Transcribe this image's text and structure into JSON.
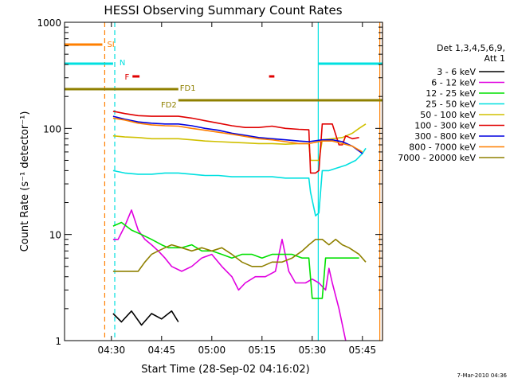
{
  "chart_data": {
    "type": "line",
    "title": "HESSI Observing Summary Count Rates",
    "xlabel": "Start Time (28-Sep-02 04:16:02)",
    "ylabel": "Count Rate (s⁻¹ detector⁻¹)",
    "yscale": "log",
    "ylim": [
      1,
      1000
    ],
    "xlim_minutes_after_04_16_02": [
      0,
      95
    ],
    "x_ticks": [
      {
        "label": "04:30",
        "t": 14
      },
      {
        "label": "04:45",
        "t": 29
      },
      {
        "label": "05:00",
        "t": 44
      },
      {
        "label": "05:15",
        "t": 59
      },
      {
        "label": "05:30",
        "t": 74
      },
      {
        "label": "05:45",
        "t": 89
      }
    ],
    "y_ticks": [
      {
        "label": "1",
        "v": 1
      },
      {
        "label": "10",
        "v": 10
      },
      {
        "label": "100",
        "v": 100
      },
      {
        "label": "1000",
        "v": 1000
      }
    ],
    "legend_title": [
      "Det 1,3,4,5,6,9,",
      "Att 1"
    ],
    "legend_placement": "right",
    "series": [
      {
        "name": "3 - 6 keV",
        "color": "#000000",
        "points": [
          [
            14.5,
            1.8
          ],
          [
            17,
            1.5
          ],
          [
            20,
            1.9
          ],
          [
            23,
            1.4
          ],
          [
            26,
            1.8
          ],
          [
            29,
            1.6
          ],
          [
            32,
            1.9
          ],
          [
            34,
            1.5
          ]
        ]
      },
      {
        "name": "6 - 12 keV",
        "color": "#e000e0",
        "points": [
          [
            14.5,
            9
          ],
          [
            16,
            9
          ],
          [
            18,
            12
          ],
          [
            20,
            17
          ],
          [
            22,
            11
          ],
          [
            24,
            9
          ],
          [
            26,
            8
          ],
          [
            28,
            7
          ],
          [
            30,
            6
          ],
          [
            32,
            5
          ],
          [
            35,
            4.5
          ],
          [
            38,
            5
          ],
          [
            41,
            6
          ],
          [
            44,
            6.5
          ],
          [
            47,
            5
          ],
          [
            50,
            4
          ],
          [
            52,
            3
          ],
          [
            54,
            3.5
          ],
          [
            57,
            4
          ],
          [
            60,
            4
          ],
          [
            63,
            4.5
          ],
          [
            65,
            9
          ],
          [
            67,
            4.5
          ],
          [
            69,
            3.5
          ],
          [
            72,
            3.5
          ],
          [
            74,
            3.8
          ],
          [
            76,
            3.5
          ],
          [
            78,
            3
          ],
          [
            79,
            4.8
          ],
          [
            80,
            3.5
          ],
          [
            82,
            2
          ],
          [
            84,
            1
          ]
        ]
      },
      {
        "name": "12 - 25 keV",
        "color": "#00e000",
        "points": [
          [
            14.5,
            12
          ],
          [
            17,
            13
          ],
          [
            20,
            11
          ],
          [
            23,
            10
          ],
          [
            26,
            9
          ],
          [
            29,
            8
          ],
          [
            31,
            7.5
          ],
          [
            35,
            7.5
          ],
          [
            38,
            8
          ],
          [
            41,
            7
          ],
          [
            44,
            7
          ],
          [
            47,
            6.5
          ],
          [
            50,
            6
          ],
          [
            53,
            6.5
          ],
          [
            56,
            6.5
          ],
          [
            59,
            6
          ],
          [
            62,
            6.5
          ],
          [
            65,
            6.5
          ],
          [
            68,
            6.5
          ],
          [
            71,
            6
          ],
          [
            73,
            6
          ],
          [
            74,
            2.5
          ],
          [
            77,
            2.5
          ],
          [
            78,
            6
          ],
          [
            81,
            6
          ],
          [
            84,
            6
          ],
          [
            88,
            6
          ]
        ]
      },
      {
        "name": "25 - 50 keV",
        "color": "#00e0e0",
        "points": [
          [
            14.5,
            40
          ],
          [
            18,
            38
          ],
          [
            22,
            37
          ],
          [
            26,
            37
          ],
          [
            30,
            38
          ],
          [
            34,
            38
          ],
          [
            38,
            37
          ],
          [
            42,
            36
          ],
          [
            46,
            36
          ],
          [
            50,
            35
          ],
          [
            54,
            35
          ],
          [
            58,
            35
          ],
          [
            62,
            35
          ],
          [
            66,
            34
          ],
          [
            70,
            34
          ],
          [
            73,
            34
          ],
          [
            73.5,
            25
          ],
          [
            75,
            15
          ],
          [
            76,
            16
          ],
          [
            77,
            40
          ],
          [
            79,
            40
          ],
          [
            81,
            42
          ],
          [
            84,
            45
          ],
          [
            87,
            50
          ],
          [
            89,
            58
          ],
          [
            90,
            65
          ]
        ]
      },
      {
        "name": "50 - 100 keV",
        "color": "#d0c000",
        "points": [
          [
            14.5,
            85
          ],
          [
            18,
            83
          ],
          [
            22,
            82
          ],
          [
            26,
            80
          ],
          [
            30,
            80
          ],
          [
            34,
            80
          ],
          [
            38,
            78
          ],
          [
            42,
            76
          ],
          [
            46,
            75
          ],
          [
            50,
            74
          ],
          [
            54,
            73
          ],
          [
            58,
            72
          ],
          [
            62,
            72
          ],
          [
            66,
            71
          ],
          [
            70,
            72
          ],
          [
            73,
            72
          ],
          [
            73.5,
            50
          ],
          [
            75,
            50
          ],
          [
            76,
            50
          ],
          [
            77,
            78
          ],
          [
            80,
            80
          ],
          [
            83,
            82
          ],
          [
            86,
            90
          ],
          [
            88,
            100
          ],
          [
            90,
            110
          ]
        ]
      },
      {
        "name": "100 - 300 keV",
        "color": "#e00000",
        "points": [
          [
            14.5,
            145
          ],
          [
            18,
            138
          ],
          [
            22,
            132
          ],
          [
            26,
            130
          ],
          [
            30,
            130
          ],
          [
            34,
            130
          ],
          [
            38,
            125
          ],
          [
            42,
            118
          ],
          [
            46,
            112
          ],
          [
            50,
            106
          ],
          [
            54,
            102
          ],
          [
            58,
            102
          ],
          [
            62,
            105
          ],
          [
            66,
            100
          ],
          [
            70,
            98
          ],
          [
            73,
            97
          ],
          [
            73.5,
            38
          ],
          [
            75,
            38
          ],
          [
            76,
            40
          ],
          [
            77,
            110
          ],
          [
            80,
            110
          ],
          [
            82,
            70
          ],
          [
            83,
            70
          ],
          [
            84,
            85
          ],
          [
            86,
            80
          ],
          [
            88,
            82
          ]
        ]
      },
      {
        "name": "300 - 800 keV",
        "color": "#0000e0",
        "points": [
          [
            14.5,
            130
          ],
          [
            18,
            122
          ],
          [
            22,
            115
          ],
          [
            26,
            112
          ],
          [
            30,
            110
          ],
          [
            34,
            110
          ],
          [
            38,
            106
          ],
          [
            42,
            100
          ],
          [
            46,
            96
          ],
          [
            50,
            90
          ],
          [
            54,
            86
          ],
          [
            58,
            82
          ],
          [
            62,
            80
          ],
          [
            66,
            78
          ],
          [
            70,
            76
          ],
          [
            73,
            75
          ],
          [
            77,
            78
          ],
          [
            80,
            78
          ],
          [
            83,
            75
          ],
          [
            86,
            68
          ],
          [
            89,
            58
          ]
        ]
      },
      {
        "name": "800 - 7000 keV",
        "color": "#ff7f00",
        "points": [
          [
            14.5,
            125
          ],
          [
            18,
            120
          ],
          [
            22,
            112
          ],
          [
            26,
            108
          ],
          [
            30,
            106
          ],
          [
            34,
            105
          ],
          [
            38,
            100
          ],
          [
            42,
            96
          ],
          [
            46,
            92
          ],
          [
            50,
            88
          ],
          [
            54,
            84
          ],
          [
            58,
            80
          ],
          [
            62,
            78
          ],
          [
            66,
            75
          ],
          [
            70,
            72
          ],
          [
            73,
            72
          ],
          [
            77,
            76
          ],
          [
            80,
            76
          ],
          [
            83,
            72
          ],
          [
            86,
            68
          ],
          [
            89,
            60
          ]
        ]
      },
      {
        "name": "7000 - 20000 keV",
        "color": "#8f8000",
        "points": [
          [
            14.5,
            4.5
          ],
          [
            18,
            4.5
          ],
          [
            22,
            4.5
          ],
          [
            24,
            5.5
          ],
          [
            26,
            6.5
          ],
          [
            28,
            7
          ],
          [
            30,
            7.5
          ],
          [
            32,
            8
          ],
          [
            35,
            7.5
          ],
          [
            38,
            7
          ],
          [
            41,
            7.5
          ],
          [
            44,
            7
          ],
          [
            47,
            7.5
          ],
          [
            50,
            6.5
          ],
          [
            53,
            5.5
          ],
          [
            56,
            5
          ],
          [
            59,
            5
          ],
          [
            62,
            5.5
          ],
          [
            65,
            5.5
          ],
          [
            68,
            6
          ],
          [
            71,
            7
          ],
          [
            73,
            8
          ],
          [
            75,
            9
          ],
          [
            77,
            9
          ],
          [
            79,
            8
          ],
          [
            81,
            9
          ],
          [
            83,
            8
          ],
          [
            85,
            7.5
          ],
          [
            88,
            6.5
          ],
          [
            90,
            5.5
          ]
        ]
      }
    ],
    "flag_bars": [
      {
        "label": "SI",
        "color": "#ff7f00",
        "level": 0.93,
        "t0": 0,
        "t1": 11.3
      },
      {
        "label": "N",
        "color": "#00e0e0",
        "level": 0.87,
        "t0": 0,
        "t1": 14.5,
        "t0b": 75.8,
        "t1b": 95
      },
      {
        "label": "F",
        "color": "#e00000",
        "level": 0.83,
        "segments": [
          [
            20.3,
            22.4
          ],
          [
            61.1,
            62.7
          ]
        ]
      },
      {
        "label": "FD1",
        "color": "#8f8000",
        "level": 0.79,
        "t0": 0,
        "t1": 34
      },
      {
        "label": "FD2",
        "color": "#8f8000",
        "level": 0.755,
        "t0": 34,
        "t1": 95
      }
    ],
    "markers": [
      {
        "color": "#ff7f00",
        "style": "dashed",
        "t": 12
      },
      {
        "color": "#00e0e0",
        "style": "dashed",
        "t": 15
      },
      {
        "color": "#00e0e0",
        "style": "solid",
        "t": 75.8
      },
      {
        "color": "#ff7f00",
        "style": "solid",
        "t": 94.2
      },
      {
        "color": "#ff7f00",
        "style": "solid",
        "t": 95
      }
    ],
    "footer": "7-Mar-2010 04:36"
  }
}
